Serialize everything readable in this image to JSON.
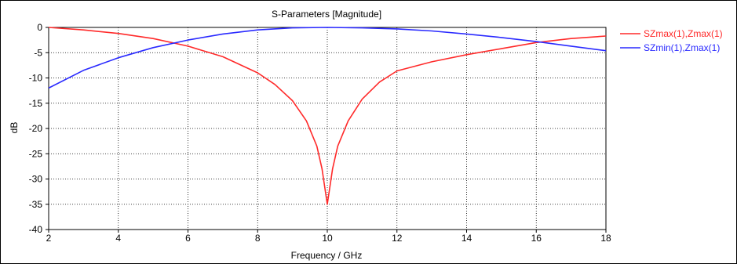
{
  "chart_data": {
    "type": "line",
    "title": "S-Parameters [Magnitude]",
    "xlabel": "Frequency / GHz",
    "ylabel": "dB",
    "xlim": [
      2,
      18
    ],
    "ylim": [
      -40,
      0
    ],
    "xticks": [
      2,
      4,
      6,
      8,
      10,
      12,
      14,
      16,
      18
    ],
    "yticks": [
      0,
      -5,
      -10,
      -15,
      -20,
      -25,
      -30,
      -35,
      -40
    ],
    "grid": true,
    "legend_position": "right",
    "series": [
      {
        "name": "SZmax(1),Zmax(1)",
        "color": "#ff2a2a",
        "x": [
          2,
          3,
          4,
          5,
          6,
          7,
          8,
          8.5,
          9,
          9.4,
          9.7,
          9.85,
          10,
          10.15,
          10.3,
          10.6,
          11,
          11.5,
          12,
          13,
          14,
          15,
          16,
          17,
          18
        ],
        "y": [
          0,
          -0.5,
          -1.2,
          -2.2,
          -3.7,
          -5.8,
          -9.0,
          -11.3,
          -14.5,
          -18.5,
          -23.5,
          -28.0,
          -35.0,
          -28.0,
          -23.5,
          -18.5,
          -14.2,
          -10.8,
          -8.6,
          -6.8,
          -5.4,
          -4.2,
          -3.0,
          -2.2,
          -1.7
        ]
      },
      {
        "name": "SZmin(1),Zmax(1)",
        "color": "#2a2aff",
        "x": [
          2,
          3,
          4,
          5,
          6,
          7,
          8,
          9,
          10,
          11,
          12,
          13,
          14,
          15,
          16,
          17,
          18
        ],
        "y": [
          -12,
          -8.5,
          -6.0,
          -4.0,
          -2.5,
          -1.3,
          -0.5,
          -0.1,
          0,
          -0.1,
          -0.3,
          -0.7,
          -1.3,
          -2.0,
          -2.8,
          -3.7,
          -4.6
        ]
      }
    ]
  }
}
